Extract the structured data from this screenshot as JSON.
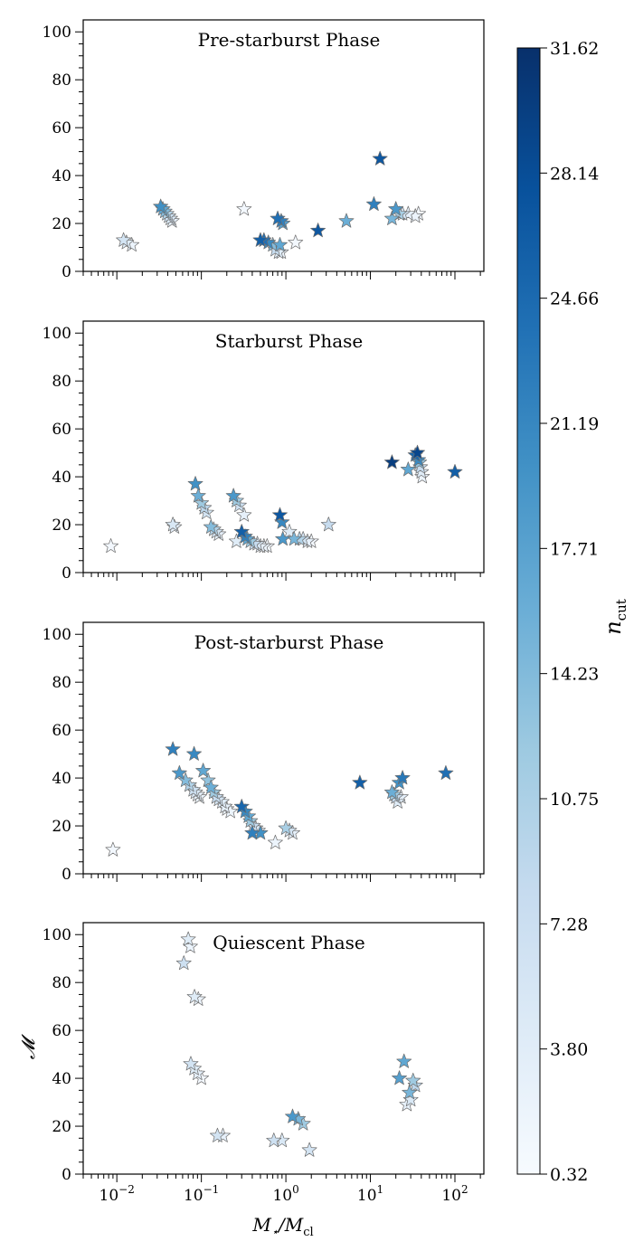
{
  "chart_data": {
    "type": "scatter",
    "marker": "star",
    "xscale": "log",
    "xlim": [
      0.004,
      220
    ],
    "ylim": [
      0,
      105
    ],
    "xlabel": "M⋆/Mcl",
    "ylabel": "𝓜",
    "x_tick_labels": [
      {
        "base": "10",
        "exp": "−2",
        "value": 0.01
      },
      {
        "base": "10",
        "exp": "−1",
        "value": 0.1
      },
      {
        "base": "10",
        "exp": "0",
        "value": 1
      },
      {
        "base": "10",
        "exp": "1",
        "value": 10
      },
      {
        "base": "10",
        "exp": "2",
        "value": 100
      }
    ],
    "y_ticks": [
      0,
      20,
      40,
      60,
      80,
      100
    ],
    "colorbar": {
      "label": "n",
      "label_sub": "cut",
      "colormap": "Blues",
      "range": [
        0.32,
        31.62
      ],
      "ticks": [
        "0.32",
        "3.80",
        "7.28",
        "10.75",
        "14.23",
        "17.71",
        "21.19",
        "24.66",
        "28.14",
        "31.62"
      ]
    },
    "panels": [
      {
        "title": "Pre-starburst Phase",
        "points": [
          {
            "x": 0.012,
            "y": 13,
            "c": 6
          },
          {
            "x": 0.013,
            "y": 12,
            "c": 4
          },
          {
            "x": 0.015,
            "y": 11,
            "c": 2
          },
          {
            "x": 0.033,
            "y": 27,
            "c": 20
          },
          {
            "x": 0.035,
            "y": 26,
            "c": 17
          },
          {
            "x": 0.037,
            "y": 25,
            "c": 14
          },
          {
            "x": 0.039,
            "y": 24,
            "c": 10
          },
          {
            "x": 0.041,
            "y": 23,
            "c": 7
          },
          {
            "x": 0.043,
            "y": 22,
            "c": 5
          },
          {
            "x": 0.045,
            "y": 21,
            "c": 3
          },
          {
            "x": 0.32,
            "y": 26,
            "c": 1
          },
          {
            "x": 0.5,
            "y": 13,
            "c": 26
          },
          {
            "x": 0.55,
            "y": 13,
            "c": 24
          },
          {
            "x": 0.62,
            "y": 12,
            "c": 21
          },
          {
            "x": 0.7,
            "y": 11,
            "c": 14
          },
          {
            "x": 0.75,
            "y": 9,
            "c": 8
          },
          {
            "x": 0.82,
            "y": 8,
            "c": 4
          },
          {
            "x": 0.88,
            "y": 8,
            "c": 2
          },
          {
            "x": 0.85,
            "y": 11,
            "c": 17
          },
          {
            "x": 0.8,
            "y": 22,
            "c": 24
          },
          {
            "x": 0.88,
            "y": 21,
            "c": 22
          },
          {
            "x": 0.92,
            "y": 20,
            "c": 18
          },
          {
            "x": 1.3,
            "y": 12,
            "c": 1
          },
          {
            "x": 2.4,
            "y": 17,
            "c": 27
          },
          {
            "x": 5.2,
            "y": 21,
            "c": 16
          },
          {
            "x": 11,
            "y": 28,
            "c": 22
          },
          {
            "x": 13,
            "y": 47,
            "c": 27
          },
          {
            "x": 18,
            "y": 22,
            "c": 15
          },
          {
            "x": 20,
            "y": 26,
            "c": 19
          },
          {
            "x": 22,
            "y": 24,
            "c": 11
          },
          {
            "x": 24,
            "y": 24,
            "c": 6
          },
          {
            "x": 28,
            "y": 24,
            "c": 3
          },
          {
            "x": 34,
            "y": 23,
            "c": 2
          },
          {
            "x": 37,
            "y": 24,
            "c": 1
          }
        ]
      },
      {
        "title": "Starburst Phase",
        "points": [
          {
            "x": 0.0085,
            "y": 11,
            "c": 1
          },
          {
            "x": 0.046,
            "y": 20,
            "c": 5
          },
          {
            "x": 0.048,
            "y": 19,
            "c": 3
          },
          {
            "x": 0.085,
            "y": 37,
            "c": 20
          },
          {
            "x": 0.092,
            "y": 32,
            "c": 16
          },
          {
            "x": 0.1,
            "y": 29,
            "c": 12
          },
          {
            "x": 0.108,
            "y": 27,
            "c": 9
          },
          {
            "x": 0.115,
            "y": 25,
            "c": 6
          },
          {
            "x": 0.13,
            "y": 19,
            "c": 14
          },
          {
            "x": 0.14,
            "y": 18,
            "c": 10
          },
          {
            "x": 0.15,
            "y": 17,
            "c": 6
          },
          {
            "x": 0.16,
            "y": 16,
            "c": 3
          },
          {
            "x": 0.24,
            "y": 32,
            "c": 19
          },
          {
            "x": 0.26,
            "y": 30,
            "c": 12
          },
          {
            "x": 0.28,
            "y": 28,
            "c": 7
          },
          {
            "x": 0.32,
            "y": 24,
            "c": 3
          },
          {
            "x": 0.26,
            "y": 13,
            "c": 4
          },
          {
            "x": 0.3,
            "y": 17,
            "c": 26
          },
          {
            "x": 0.33,
            "y": 15,
            "c": 22
          },
          {
            "x": 0.35,
            "y": 14,
            "c": 17
          },
          {
            "x": 0.38,
            "y": 13,
            "c": 12
          },
          {
            "x": 0.42,
            "y": 12,
            "c": 8
          },
          {
            "x": 0.46,
            "y": 12,
            "c": 5
          },
          {
            "x": 0.5,
            "y": 11,
            "c": 3
          },
          {
            "x": 0.55,
            "y": 11,
            "c": 2
          },
          {
            "x": 0.6,
            "y": 11,
            "c": 1
          },
          {
            "x": 0.85,
            "y": 24,
            "c": 27
          },
          {
            "x": 0.9,
            "y": 21,
            "c": 21
          },
          {
            "x": 0.92,
            "y": 14,
            "c": 19
          },
          {
            "x": 1.1,
            "y": 17,
            "c": 4
          },
          {
            "x": 1.25,
            "y": 14,
            "c": 15
          },
          {
            "x": 1.45,
            "y": 14,
            "c": 10
          },
          {
            "x": 1.6,
            "y": 14,
            "c": 6
          },
          {
            "x": 1.8,
            "y": 13,
            "c": 3
          },
          {
            "x": 2.0,
            "y": 13,
            "c": 1
          },
          {
            "x": 3.2,
            "y": 20,
            "c": 8
          },
          {
            "x": 18,
            "y": 46,
            "c": 30
          },
          {
            "x": 28,
            "y": 43,
            "c": 17
          },
          {
            "x": 34,
            "y": 49,
            "c": 25
          },
          {
            "x": 36,
            "y": 50,
            "c": 29
          },
          {
            "x": 37,
            "y": 47,
            "c": 21
          },
          {
            "x": 38,
            "y": 46,
            "c": 13
          },
          {
            "x": 39,
            "y": 44,
            "c": 8
          },
          {
            "x": 40,
            "y": 42,
            "c": 4
          },
          {
            "x": 41,
            "y": 40,
            "c": 2
          },
          {
            "x": 100,
            "y": 42,
            "c": 26
          }
        ]
      },
      {
        "title": "Post-starburst Phase",
        "points": [
          {
            "x": 0.009,
            "y": 10,
            "c": 1
          },
          {
            "x": 0.046,
            "y": 52,
            "c": 22
          },
          {
            "x": 0.055,
            "y": 42,
            "c": 19
          },
          {
            "x": 0.065,
            "y": 39,
            "c": 14
          },
          {
            "x": 0.072,
            "y": 37,
            "c": 10
          },
          {
            "x": 0.08,
            "y": 35,
            "c": 7
          },
          {
            "x": 0.085,
            "y": 34,
            "c": 5
          },
          {
            "x": 0.09,
            "y": 33,
            "c": 3
          },
          {
            "x": 0.095,
            "y": 32,
            "c": 2
          },
          {
            "x": 0.082,
            "y": 50,
            "c": 21
          },
          {
            "x": 0.105,
            "y": 43,
            "c": 17
          },
          {
            "x": 0.12,
            "y": 39,
            "c": 13
          },
          {
            "x": 0.13,
            "y": 36,
            "c": 16
          },
          {
            "x": 0.14,
            "y": 34,
            "c": 12
          },
          {
            "x": 0.15,
            "y": 32,
            "c": 8
          },
          {
            "x": 0.16,
            "y": 31,
            "c": 6
          },
          {
            "x": 0.175,
            "y": 30,
            "c": 4
          },
          {
            "x": 0.19,
            "y": 28,
            "c": 3
          },
          {
            "x": 0.2,
            "y": 27,
            "c": 2
          },
          {
            "x": 0.22,
            "y": 26,
            "c": 2
          },
          {
            "x": 0.3,
            "y": 28,
            "c": 25
          },
          {
            "x": 0.33,
            "y": 26,
            "c": 21
          },
          {
            "x": 0.36,
            "y": 24,
            "c": 17
          },
          {
            "x": 0.38,
            "y": 22,
            "c": 12
          },
          {
            "x": 0.41,
            "y": 20,
            "c": 8
          },
          {
            "x": 0.44,
            "y": 19,
            "c": 5
          },
          {
            "x": 0.47,
            "y": 18,
            "c": 3
          },
          {
            "x": 0.4,
            "y": 17,
            "c": 22
          },
          {
            "x": 0.5,
            "y": 17,
            "c": 20
          },
          {
            "x": 0.75,
            "y": 13,
            "c": 2
          },
          {
            "x": 1.0,
            "y": 19,
            "c": 11
          },
          {
            "x": 1.1,
            "y": 18,
            "c": 6
          },
          {
            "x": 1.2,
            "y": 17,
            "c": 3
          },
          {
            "x": 7.5,
            "y": 38,
            "c": 26
          },
          {
            "x": 18,
            "y": 34,
            "c": 16
          },
          {
            "x": 19,
            "y": 33,
            "c": 12
          },
          {
            "x": 20,
            "y": 32,
            "c": 8
          },
          {
            "x": 21,
            "y": 30,
            "c": 4
          },
          {
            "x": 22,
            "y": 38,
            "c": 20
          },
          {
            "x": 24,
            "y": 40,
            "c": 23
          },
          {
            "x": 23,
            "y": 32,
            "c": 3
          },
          {
            "x": 78,
            "y": 42,
            "c": 24
          }
        ]
      },
      {
        "title": "Quiescent Phase",
        "points": [
          {
            "x": 0.062,
            "y": 88,
            "c": 7
          },
          {
            "x": 0.07,
            "y": 98,
            "c": 4
          },
          {
            "x": 0.074,
            "y": 95,
            "c": 2
          },
          {
            "x": 0.083,
            "y": 74,
            "c": 4
          },
          {
            "x": 0.092,
            "y": 73,
            "c": 2
          },
          {
            "x": 0.075,
            "y": 46,
            "c": 6
          },
          {
            "x": 0.082,
            "y": 44,
            "c": 4
          },
          {
            "x": 0.09,
            "y": 42,
            "c": 3
          },
          {
            "x": 0.1,
            "y": 40,
            "c": 1
          },
          {
            "x": 0.155,
            "y": 16,
            "c": 6
          },
          {
            "x": 0.18,
            "y": 16,
            "c": 3
          },
          {
            "x": 0.72,
            "y": 14,
            "c": 7
          },
          {
            "x": 0.9,
            "y": 14,
            "c": 5
          },
          {
            "x": 1.2,
            "y": 24,
            "c": 19
          },
          {
            "x": 1.4,
            "y": 23,
            "c": 15
          },
          {
            "x": 1.6,
            "y": 21,
            "c": 12
          },
          {
            "x": 1.9,
            "y": 10,
            "c": 6
          },
          {
            "x": 22,
            "y": 40,
            "c": 18
          },
          {
            "x": 25,
            "y": 47,
            "c": 17
          },
          {
            "x": 27,
            "y": 29,
            "c": 3
          },
          {
            "x": 29,
            "y": 34,
            "c": 15
          },
          {
            "x": 30,
            "y": 31,
            "c": 5
          },
          {
            "x": 32,
            "y": 39,
            "c": 12
          },
          {
            "x": 34,
            "y": 37,
            "c": 9
          }
        ]
      }
    ]
  }
}
